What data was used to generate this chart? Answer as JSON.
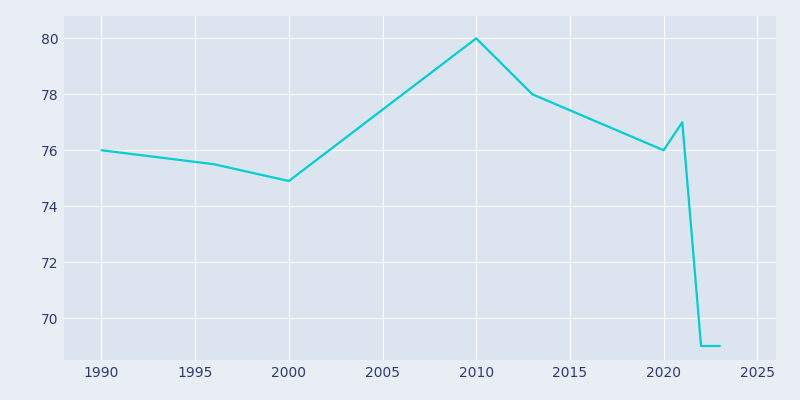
{
  "years": [
    1990,
    1996,
    2000,
    2010,
    2013,
    2020,
    2021,
    2022,
    2023
  ],
  "population": [
    76,
    75.5,
    74.9,
    80,
    78,
    76,
    77,
    69,
    69
  ],
  "line_color": "#00CED1",
  "bg_color": "#E8EEF4",
  "plot_bg_color": "#DCE5EF",
  "tick_color": "#2E3A6E",
  "grid_color": "#FFFFFF",
  "xlim": [
    1988,
    2026
  ],
  "ylim_min": 68.5,
  "ylim_max": 80.8,
  "yticks": [
    70,
    72,
    74,
    76,
    78,
    80
  ],
  "xticks": [
    1990,
    1995,
    2000,
    2005,
    2010,
    2015,
    2020,
    2025
  ],
  "linewidth": 1.6
}
